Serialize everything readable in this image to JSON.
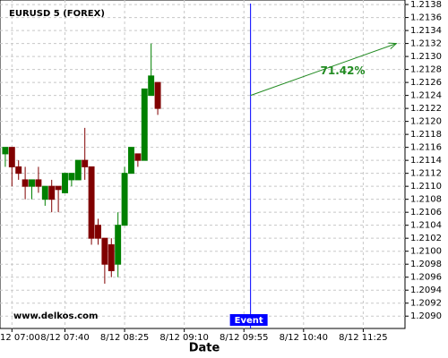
{
  "chart_data": {
    "type": "candlestick",
    "title": "EURUSD 5 (FOREX)",
    "x_label": "Date",
    "watermark": "www.delkos.com",
    "open": [
      1.2115,
      1.2116,
      1.2113,
      1.2111,
      1.211,
      1.2111,
      1.2108,
      1.211,
      1.211,
      1.2109,
      1.2111,
      1.2111,
      1.2114,
      1.2113,
      1.2104,
      1.2102,
      1.2101,
      1.2098,
      1.2104,
      1.2112,
      1.2115,
      1.2114,
      1.2124,
      1.2126
    ],
    "high": [
      1.2116,
      1.2116,
      1.2114,
      1.2113,
      1.2111,
      1.2113,
      1.211,
      1.2111,
      1.211,
      1.2112,
      1.2112,
      1.2114,
      1.2119,
      1.2113,
      1.2105,
      1.2102,
      1.2102,
      1.2106,
      1.2113,
      1.2116,
      1.2115,
      1.2125,
      1.2132,
      1.2126
    ],
    "low": [
      1.2113,
      1.211,
      1.2111,
      1.2108,
      1.2108,
      1.2109,
      1.2107,
      1.2106,
      1.2106,
      1.2109,
      1.211,
      1.2111,
      1.2111,
      1.2101,
      1.2101,
      1.2095,
      1.2096,
      1.2096,
      1.2104,
      1.2112,
      1.2113,
      1.2114,
      1.2124,
      1.2121
    ],
    "close": [
      1.2116,
      1.2113,
      1.2112,
      1.211,
      1.2111,
      1.211,
      1.211,
      1.2108,
      1.21095,
      1.2112,
      1.2112,
      1.2114,
      1.2113,
      1.2102,
      1.2102,
      1.2098,
      1.2097,
      1.2104,
      1.2112,
      1.2116,
      1.2114,
      1.2125,
      1.2127,
      1.2122
    ],
    "up_color": "#008000",
    "down_color": "#800000",
    "xlim": [
      -0.8,
      60.3
    ],
    "xticks": [
      {
        "value": 1,
        "label": "12 07:00"
      },
      {
        "value": 9,
        "label": "8/12 07:40"
      },
      {
        "value": 18,
        "label": "8/12 08:25"
      },
      {
        "value": 27,
        "label": "8/12 09:10"
      },
      {
        "value": 36,
        "label": "8/12 09:55"
      },
      {
        "value": 45,
        "label": "8/12 10:40"
      },
      {
        "value": 54,
        "label": "8/12 11:25"
      }
    ],
    "ylim": [
      1.20881,
      1.21387
    ],
    "yticks": [
      {
        "value": 1.209,
        "label": "1.2090"
      },
      1.2092,
      1.2094,
      1.2096,
      1.2098,
      {
        "value": 1.21,
        "label": "1.2100"
      },
      1.2102,
      1.2104,
      1.2106,
      1.2108,
      {
        "value": 1.211,
        "label": "1.2110"
      },
      1.2112,
      1.2114,
      1.2116,
      1.2118,
      {
        "value": 1.212,
        "label": "1.2120"
      },
      1.2122,
      1.2124,
      1.2126,
      1.2128,
      {
        "value": 1.213,
        "label": "1.2130"
      },
      1.2132,
      1.2134,
      1.2136,
      1.2138
    ],
    "grid": true,
    "event": {
      "x": 37,
      "label": "Event",
      "color": "#0000ff"
    },
    "arrow": {
      "x": [
        37,
        59
      ],
      "y": [
        1.2124,
        1.2132
      ],
      "label": "71.42%",
      "color": "#228b22"
    }
  }
}
